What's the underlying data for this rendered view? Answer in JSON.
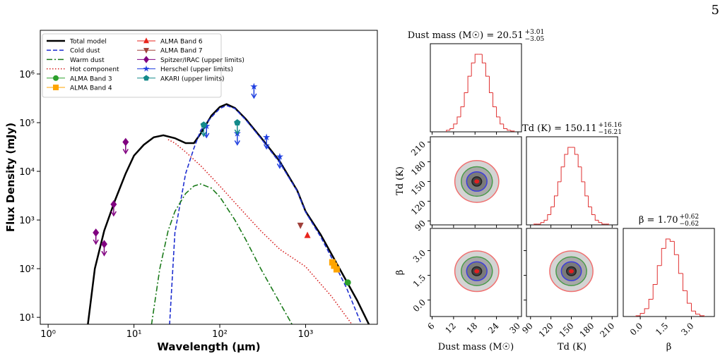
{
  "page_number": "5",
  "chart_data": [
    {
      "type": "line",
      "xlabel": "Wavelength (μm)",
      "ylabel": "Flux Density (mJy)",
      "log_x": true,
      "log_y": true,
      "legend": "upper left",
      "xlim": [
        0.81,
        6850
      ],
      "ylim": [
        7.2,
        7900000
      ],
      "xticks": [
        {
          "value": 1,
          "label": "10⁰"
        },
        {
          "value": 10,
          "label": "10¹"
        },
        {
          "value": 100,
          "label": "10²"
        },
        {
          "value": 1000,
          "label": "10³"
        }
      ],
      "yticks": [
        {
          "value": 10,
          "label": "10¹"
        },
        {
          "value": 100,
          "label": "10²"
        },
        {
          "value": 1000,
          "label": "10³"
        },
        {
          "value": 10000,
          "label": "10⁴"
        },
        {
          "value": 100000,
          "label": "10⁵"
        },
        {
          "value": 1000000,
          "label": "10⁶"
        }
      ],
      "series": [
        {
          "name": "Total model",
          "color": "#000000",
          "linestyle": "solid",
          "x": [
            2.9,
            3.5,
            4.5,
            6,
            8,
            10,
            13,
            17,
            22,
            30,
            40,
            50,
            60,
            80,
            100,
            120,
            150,
            200,
            300,
            500,
            800,
            1000,
            1500,
            2000,
            3000,
            4000,
            5500
          ],
          "values": [
            7,
            100,
            600,
            2500,
            9000,
            21000,
            35000,
            50000,
            55000,
            48000,
            38000,
            38000,
            60000,
            140000,
            210000,
            240000,
            200000,
            120000,
            50000,
            16000,
            4000,
            1500,
            500,
            200,
            55,
            22,
            7
          ]
        },
        {
          "name": "Cold dust",
          "color": "#1f2fd0",
          "linestyle": "dashed",
          "x": [
            26,
            30,
            40,
            50,
            60,
            80,
            100,
            120,
            150,
            200,
            300,
            500,
            800,
            1000,
            1500,
            2000,
            3000,
            4500
          ],
          "values": [
            7,
            550,
            9000,
            30000,
            70000,
            130000,
            195000,
            225000,
            195000,
            115000,
            48000,
            15000,
            3900,
            1450,
            450,
            170,
            40,
            7
          ]
        },
        {
          "name": "Warm dust",
          "color": "#1a7a1a",
          "linestyle": "dashdot",
          "x": [
            16,
            20,
            25,
            30,
            40,
            50,
            60,
            80,
            100,
            150,
            200,
            300,
            500,
            700
          ],
          "values": [
            7,
            100,
            600,
            1500,
            3500,
            5000,
            5500,
            4500,
            3000,
            1000,
            400,
            100,
            20,
            7
          ]
        },
        {
          "name": "Hot component",
          "color": "#d62020",
          "linestyle": "dotted",
          "x": [
            25,
            30,
            40,
            60,
            100,
            200,
            300,
            500,
            1000,
            2000,
            3500
          ],
          "values": [
            45000,
            38000,
            25000,
            13000,
            5000,
            1300,
            600,
            250,
            110,
            27,
            7
          ]
        },
        {
          "name": "ALMA Band 3",
          "color": "#2ca02c",
          "marker": "circle",
          "x": [
            3100
          ],
          "values": [
            52
          ]
        },
        {
          "name": "ALMA Band 4",
          "color": "#ffa500",
          "marker": "square",
          "x": [
            2050,
            2150,
            2300
          ],
          "values": [
            135,
            115,
            97
          ]
        },
        {
          "name": "ALMA Band 6",
          "color": "#e8251c",
          "marker": "triangle-up",
          "x": [
            1050
          ],
          "values": [
            480
          ]
        },
        {
          "name": "ALMA Band 7",
          "color": "#a0403a",
          "marker": "triangle-down",
          "x": [
            870
          ],
          "values": [
            780
          ]
        },
        {
          "name": "Spitzer/IRAC (upper limits)",
          "color": "#800080",
          "marker": "diamond",
          "upper_limit": true,
          "x": [
            3.6,
            4.5,
            5.8,
            8.0
          ],
          "values": [
            550,
            320,
            2100,
            40000
          ]
        },
        {
          "name": "Herschel (upper limits)",
          "color": "#1f3fe0",
          "marker": "star",
          "upper_limit": true,
          "x": [
            70,
            160,
            250,
            350,
            500
          ],
          "values": [
            85000,
            60000,
            550000,
            50000,
            20000
          ]
        },
        {
          "name": "AKARI (upper limits)",
          "color": "#138a8a",
          "marker": "pentagon",
          "upper_limit": true,
          "x": [
            65,
            160
          ],
          "values": [
            90000,
            100000
          ]
        }
      ]
    },
    {
      "type": "corner",
      "hist_color": "#e03030",
      "parameters": [
        {
          "label": "Dust mass (M☉)",
          "title": "Dust mass (M☉) = 20.51",
          "title_sup": "+3.01",
          "title_sub": "−3.05",
          "lim": [
            5.5,
            31
          ],
          "ticks": [
            6,
            12,
            18,
            24,
            30
          ],
          "center": 18.5,
          "spread": 3.0,
          "bins": [
            10,
            11,
            12,
            13,
            14,
            15,
            16,
            17,
            18,
            19,
            20,
            21,
            22,
            23,
            24,
            25,
            26,
            27,
            28,
            29
          ],
          "counts": [
            2,
            4,
            10,
            19,
            32,
            50,
            71,
            88,
            99,
            99,
            88,
            71,
            50,
            32,
            19,
            10,
            4,
            2,
            1
          ]
        },
        {
          "label": "Td (K)",
          "title": "Td (K) = 150.11",
          "title_sup": "+16.16",
          "title_sub": "−16.21",
          "lim": [
            84,
            218
          ],
          "ticks": [
            90,
            120,
            150,
            180,
            210
          ],
          "center": 150,
          "spread": 15.5,
          "bins": [
            95,
            100,
            105,
            110,
            115,
            120,
            125,
            130,
            135,
            140,
            145,
            150,
            155,
            160,
            165,
            170,
            175,
            180,
            185,
            190,
            195,
            200,
            205
          ],
          "counts": [
            1,
            1,
            3,
            6,
            13,
            23,
            37,
            55,
            74,
            90,
            99,
            99,
            90,
            74,
            55,
            37,
            23,
            13,
            6,
            3,
            1,
            1
          ]
        },
        {
          "label": "β",
          "title": "β = 1.70",
          "title_sup": "+0.62",
          "title_sub": "−0.62",
          "lim": [
            -1.0,
            4.35
          ],
          "ticks": [
            {
              "value": 0,
              "label": "0.0"
            },
            1.5,
            {
              "value": 3,
              "label": "3.0"
            }
          ],
          "center": 1.75,
          "spread": 0.6,
          "bins": [
            -0.25,
            0,
            0.25,
            0.5,
            0.75,
            1,
            1.25,
            1.5,
            1.75,
            2,
            2.25,
            2.5,
            2.75,
            3,
            3.25,
            3.5,
            3.75
          ],
          "counts": [
            1,
            4,
            10,
            22,
            41,
            65,
            87,
            99,
            96,
            79,
            55,
            33,
            17,
            7,
            3,
            1
          ]
        }
      ]
    }
  ]
}
